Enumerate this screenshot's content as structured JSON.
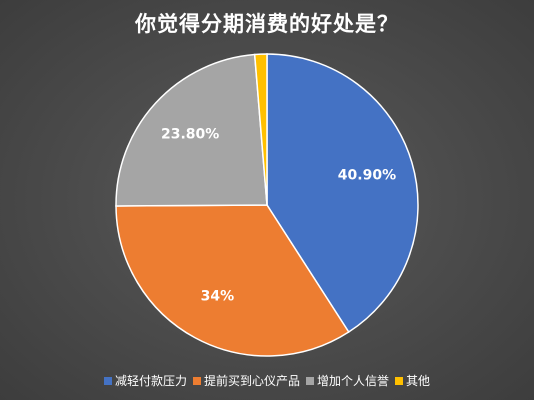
{
  "chart_data": {
    "type": "pie",
    "title": "你觉得分期消费的好处是？",
    "slices": [
      {
        "name": "减轻付款压力",
        "value": 40.9,
        "label": "40.90%",
        "color": "#4472C4"
      },
      {
        "name": "提前买到心仪产品",
        "value": 34.0,
        "label": "34%",
        "color": "#ED7D31"
      },
      {
        "name": "增加个人信誉",
        "value": 23.8,
        "label": "23.80%",
        "color": "#A5A5A5"
      },
      {
        "name": "其他",
        "value": 1.3,
        "label": "",
        "color": "#FFC000"
      }
    ],
    "start_angle_deg": 0,
    "direction": "clockwise",
    "legend_position": "bottom"
  }
}
